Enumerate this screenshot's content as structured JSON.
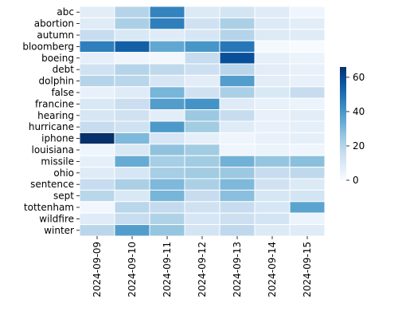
{
  "chart_data": {
    "type": "heatmap",
    "title": "",
    "xlabel": "",
    "ylabel": "",
    "x": [
      "2024-09-09",
      "2024-09-10",
      "2024-09-11",
      "2024-09-12",
      "2024-09-13",
      "2024-09-14",
      "2024-09-15"
    ],
    "y": [
      "abc",
      "abortion",
      "autumn",
      "bloomberg",
      "boeing",
      "debt",
      "dolphin",
      "false",
      "francine",
      "hearing",
      "hurricane",
      "iphone",
      "louisiana",
      "missile",
      "ohio",
      "sentence",
      "sept",
      "tottenham",
      "wildfire",
      "winter"
    ],
    "values": [
      [
        7,
        20,
        45,
        9,
        12,
        8,
        3
      ],
      [
        8,
        22,
        46,
        13,
        22,
        9,
        7
      ],
      [
        16,
        10,
        8,
        11,
        20,
        9,
        8
      ],
      [
        46,
        54,
        35,
        40,
        48,
        1,
        0
      ],
      [
        6,
        3,
        2,
        16,
        58,
        6,
        4
      ],
      [
        13,
        20,
        18,
        14,
        19,
        7,
        5
      ],
      [
        20,
        19,
        11,
        7,
        38,
        7,
        5
      ],
      [
        5,
        8,
        31,
        13,
        22,
        10,
        16
      ],
      [
        10,
        15,
        38,
        41,
        8,
        5,
        4
      ],
      [
        11,
        13,
        7,
        25,
        16,
        5,
        7
      ],
      [
        16,
        13,
        39,
        24,
        8,
        5,
        6
      ],
      [
        66,
        30,
        11,
        6,
        3,
        5,
        6
      ],
      [
        3,
        10,
        27,
        24,
        3,
        4,
        3
      ],
      [
        6,
        34,
        23,
        24,
        32,
        26,
        28
      ],
      [
        8,
        11,
        23,
        24,
        25,
        16,
        18
      ],
      [
        16,
        22,
        30,
        22,
        30,
        13,
        9
      ],
      [
        19,
        10,
        31,
        16,
        28,
        11,
        12
      ],
      [
        2,
        19,
        17,
        13,
        16,
        11,
        36
      ],
      [
        8,
        16,
        21,
        11,
        14,
        12,
        4
      ],
      [
        19,
        38,
        26,
        12,
        18,
        9,
        8
      ]
    ],
    "vmin": 0,
    "vmax": 66,
    "colormap": "Blues",
    "grid": false,
    "colorbar": {
      "ticks": [
        0,
        20,
        40,
        60
      ],
      "placement": "right"
    },
    "cell_border_color": "#ffffff"
  }
}
